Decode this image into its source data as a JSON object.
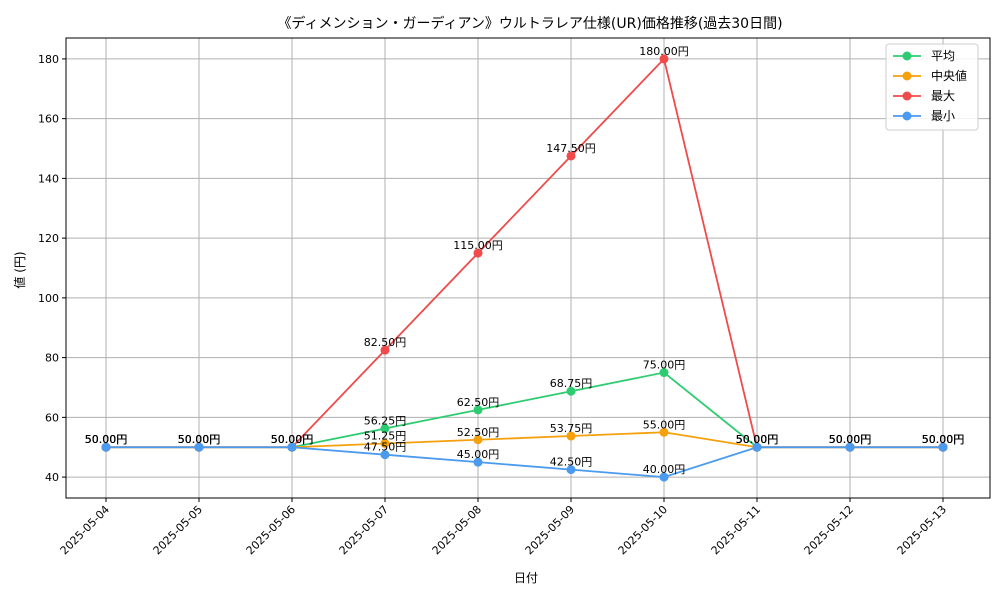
{
  "chart_data": {
    "type": "line",
    "title": "《ディメンション・ガーディアン》ウルトラレア仕様(UR)価格推移(過去30日間)",
    "xlabel": "日付",
    "ylabel": "値 (円)",
    "x": [
      "2025-05-04",
      "2025-05-05",
      "2025-05-06",
      "2025-05-07",
      "2025-05-08",
      "2025-05-09",
      "2025-05-10",
      "2025-05-11",
      "2025-05-12",
      "2025-05-13"
    ],
    "ylim": [
      33,
      187
    ],
    "yticks": [
      "40",
      "60",
      "80",
      "100",
      "120",
      "140",
      "160",
      "180"
    ],
    "grid": true,
    "legend_position": "top-right",
    "series": [
      {
        "name": "平均",
        "color": "#2ecc71",
        "values": [
          50.0,
          50.0,
          50.0,
          56.25,
          62.5,
          68.75,
          75.0,
          50.0,
          50.0,
          50.0
        ],
        "labels": [
          "50.00円",
          "50.00円",
          "50.00円",
          "56.25円",
          "62.50円",
          "68.75円",
          "75.00円",
          "50.00円",
          "50.00円",
          "50.00円"
        ]
      },
      {
        "name": "中央値",
        "color": "#f5a00d",
        "values": [
          50.0,
          50.0,
          50.0,
          51.25,
          52.5,
          53.75,
          55.0,
          50.0,
          50.0,
          50.0
        ],
        "labels": [
          "50.00円",
          "50.00円",
          "50.00円",
          "51.25円",
          "52.50円",
          "53.75円",
          "55.00円",
          "50.00円",
          "50.00円",
          "50.00円"
        ]
      },
      {
        "name": "最大",
        "color": "#f04a4a",
        "values": [
          50.0,
          50.0,
          50.0,
          82.5,
          115.0,
          147.5,
          180.0,
          50.0,
          50.0,
          50.0
        ],
        "labels": [
          "50.00円",
          "50.00円",
          "50.00円",
          "82.50円",
          "115.00円",
          "147.50円",
          "180.00円",
          "50.00円",
          "50.00円",
          "50.00円"
        ]
      },
      {
        "name": "最小",
        "color": "#4a9af0",
        "values": [
          50.0,
          50.0,
          50.0,
          47.5,
          45.0,
          42.5,
          40.0,
          50.0,
          50.0,
          50.0
        ],
        "labels": [
          "50.00円",
          "50.00円",
          "50.00円",
          "47.50円",
          "45.00円",
          "42.50円",
          "40.00円",
          "50.00円",
          "50.00円",
          "50.00円"
        ]
      }
    ]
  }
}
